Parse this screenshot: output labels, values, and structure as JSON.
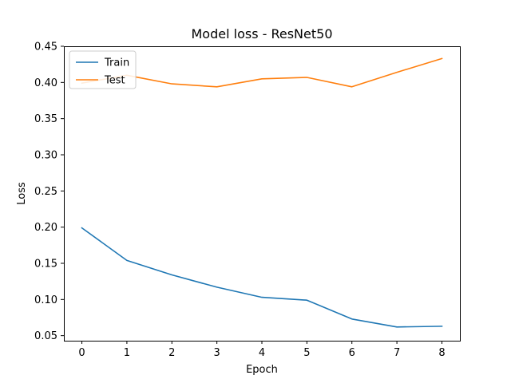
{
  "chart_data": {
    "type": "line",
    "title": "Model loss - ResNet50",
    "xlabel": "Epoch",
    "ylabel": "Loss",
    "x": [
      0,
      1,
      2,
      3,
      4,
      5,
      6,
      7,
      8
    ],
    "xticks": [
      "0",
      "1",
      "2",
      "3",
      "4",
      "5",
      "6",
      "7",
      "8"
    ],
    "yticks": [
      "0.05",
      "0.10",
      "0.15",
      "0.20",
      "0.25",
      "0.30",
      "0.35",
      "0.40",
      "0.45"
    ],
    "xlim": [
      -0.4,
      8.4
    ],
    "ylim": [
      0.043,
      0.45
    ],
    "grid": false,
    "legend_position": "upper-left",
    "series": [
      {
        "name": "Train",
        "color": "#1f77b4",
        "values": [
          0.199,
          0.154,
          0.134,
          0.117,
          0.103,
          0.099,
          0.073,
          0.062,
          0.063
        ]
      },
      {
        "name": "Test",
        "color": "#ff7f0e",
        "values": [
          0.399,
          0.41,
          0.398,
          0.394,
          0.405,
          0.407,
          0.394,
          0.414,
          0.433
        ]
      }
    ]
  }
}
